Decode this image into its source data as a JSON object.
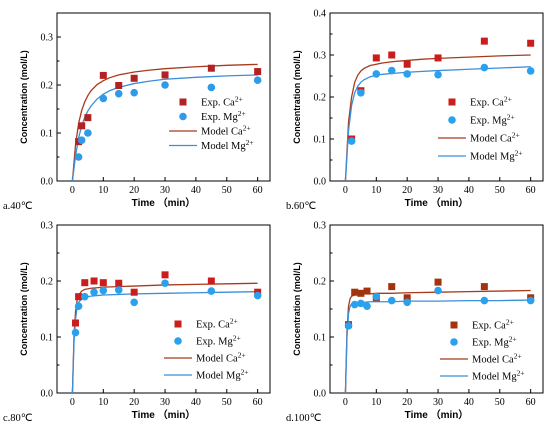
{
  "chart_data": [
    {
      "type": "scatter",
      "panel_label": "a.40℃",
      "xlabel": "Time （min）",
      "ylabel": "Concentration (mol/L)",
      "xlim": [
        -5,
        64
      ],
      "ylim": [
        0,
        0.35
      ],
      "xticks": [
        "0",
        "10",
        "20",
        "30",
        "40",
        "50",
        "60"
      ],
      "yticks": [
        "0.0",
        "0.1",
        "0.2",
        "0.3"
      ],
      "series": [
        {
          "name": "Exp. Ca2+",
          "kind": "points",
          "marker": "square",
          "color": "#b22222",
          "x": [
            2,
            3,
            5,
            10,
            15,
            20,
            30,
            45,
            60
          ],
          "y": [
            0.082,
            0.115,
            0.132,
            0.22,
            0.199,
            0.214,
            0.221,
            0.235,
            0.228
          ]
        },
        {
          "name": "Exp. Mg2+",
          "kind": "points",
          "marker": "circle",
          "color": "#2f9be8",
          "x": [
            2,
            3,
            5,
            10,
            15,
            20,
            30,
            45,
            60
          ],
          "y": [
            0.05,
            0.085,
            0.1,
            0.172,
            0.182,
            0.184,
            0.2,
            0.195,
            0.21
          ]
        },
        {
          "name": "Model Ca2+",
          "kind": "line",
          "color": "#a83a1c",
          "x": [
            0,
            1,
            2,
            3,
            4,
            5,
            6,
            8,
            10,
            12,
            15,
            20,
            25,
            30,
            40,
            50,
            60
          ],
          "y": [
            0,
            0.075,
            0.12,
            0.147,
            0.165,
            0.178,
            0.188,
            0.201,
            0.209,
            0.215,
            0.221,
            0.227,
            0.231,
            0.234,
            0.238,
            0.241,
            0.243
          ]
        },
        {
          "name": "Model Mg2+",
          "kind": "line",
          "color": "#3a8fd8",
          "x": [
            0,
            1,
            2,
            3,
            4,
            5,
            6,
            8,
            10,
            12,
            15,
            20,
            25,
            30,
            40,
            50,
            60
          ],
          "y": [
            0,
            0.052,
            0.09,
            0.115,
            0.133,
            0.146,
            0.156,
            0.171,
            0.181,
            0.188,
            0.195,
            0.203,
            0.208,
            0.212,
            0.216,
            0.219,
            0.221
          ]
        }
      ],
      "legend": "center-right",
      "legend_entries": [
        {
          "series": 0,
          "text": "Exp. Ca",
          "sup": "2+"
        },
        {
          "series": 1,
          "text": "Exp. Mg",
          "sup": "2+"
        },
        {
          "series": 2,
          "text": "Model Ca",
          "sup": "2+"
        },
        {
          "series": 3,
          "text": "Model Mg",
          "sup": "2+"
        }
      ]
    },
    {
      "type": "scatter",
      "panel_label": "b.60℃",
      "xlabel": "Time （min）",
      "ylabel": "Concentration (mol/L)",
      "xlim": [
        -5,
        64
      ],
      "ylim": [
        0,
        0.4
      ],
      "xticks": [
        "0",
        "10",
        "20",
        "30",
        "40",
        "50",
        "60"
      ],
      "yticks": [
        "0.0",
        "0.1",
        "0.2",
        "0.3",
        "0.4"
      ],
      "series": [
        {
          "name": "Exp. Ca2+",
          "kind": "points",
          "marker": "square",
          "color": "#cc1d1d",
          "x": [
            2,
            5,
            10,
            15,
            20,
            30,
            45,
            60
          ],
          "y": [
            0.1,
            0.215,
            0.293,
            0.3,
            0.278,
            0.293,
            0.333,
            0.328
          ]
        },
        {
          "name": "Exp. Mg2+",
          "kind": "points",
          "marker": "circle",
          "color": "#2aa1ee",
          "x": [
            2,
            5,
            10,
            15,
            20,
            30,
            45,
            60
          ],
          "y": [
            0.095,
            0.21,
            0.255,
            0.263,
            0.255,
            0.253,
            0.27,
            0.262
          ]
        },
        {
          "name": "Model Ca2+",
          "kind": "line",
          "color": "#a83a1c",
          "x": [
            0,
            1,
            2,
            3,
            4,
            5,
            6,
            8,
            10,
            12,
            15,
            20,
            25,
            30,
            40,
            50,
            60
          ],
          "y": [
            0,
            0.14,
            0.2,
            0.235,
            0.252,
            0.262,
            0.268,
            0.275,
            0.278,
            0.281,
            0.284,
            0.287,
            0.29,
            0.292,
            0.295,
            0.298,
            0.3
          ]
        },
        {
          "name": "Model Mg2+",
          "kind": "line",
          "color": "#3a8fd8",
          "x": [
            0,
            1,
            2,
            3,
            4,
            5,
            6,
            8,
            10,
            12,
            15,
            20,
            25,
            30,
            40,
            50,
            60
          ],
          "y": [
            0,
            0.12,
            0.18,
            0.21,
            0.226,
            0.235,
            0.241,
            0.248,
            0.252,
            0.254,
            0.256,
            0.259,
            0.261,
            0.263,
            0.266,
            0.269,
            0.272
          ]
        }
      ],
      "legend": "center-right",
      "legend_entries": [
        {
          "series": 0,
          "text": "Exp. Ca",
          "sup": "2+"
        },
        {
          "series": 1,
          "text": "Exp. Mg",
          "sup": "2+"
        },
        {
          "series": 2,
          "text": "Model Ca",
          "sup": "2+"
        },
        {
          "series": 3,
          "text": "Model Mg",
          "sup": "2+"
        }
      ]
    },
    {
      "type": "scatter",
      "panel_label": "c.80℃",
      "xlabel": "Time （min）",
      "ylabel": "Concentration (mol/L)",
      "xlim": [
        -5,
        64
      ],
      "ylim": [
        0,
        0.3
      ],
      "xticks": [
        "0",
        "10",
        "20",
        "30",
        "40",
        "50",
        "60"
      ],
      "yticks": [
        "0.0",
        "0.1",
        "0.2",
        "0.3"
      ],
      "series": [
        {
          "name": "Exp. Ca2+",
          "kind": "points",
          "marker": "square",
          "color": "#cc1d1d",
          "x": [
            1,
            2,
            4,
            7,
            10,
            15,
            20,
            30,
            45,
            60
          ],
          "y": [
            0.125,
            0.172,
            0.197,
            0.2,
            0.197,
            0.196,
            0.18,
            0.211,
            0.2,
            0.18
          ]
        },
        {
          "name": "Exp. Mg2+",
          "kind": "points",
          "marker": "circle",
          "color": "#2aa1ee",
          "x": [
            1,
            2,
            4,
            7,
            10,
            15,
            20,
            30,
            45,
            60
          ],
          "y": [
            0.108,
            0.155,
            0.172,
            0.18,
            0.183,
            0.184,
            0.162,
            0.196,
            0.182,
            0.174
          ]
        },
        {
          "name": "Model Ca2+",
          "kind": "line",
          "color": "#a83a1c",
          "x": [
            0,
            0.5,
            1,
            1.5,
            2,
            3,
            4,
            5,
            6,
            8,
            10,
            15,
            20,
            30,
            40,
            50,
            60
          ],
          "y": [
            0,
            0.1,
            0.145,
            0.165,
            0.175,
            0.182,
            0.185,
            0.186,
            0.187,
            0.188,
            0.189,
            0.19,
            0.191,
            0.193,
            0.194,
            0.195,
            0.196
          ]
        },
        {
          "name": "Model Mg2+",
          "kind": "line",
          "color": "#3a8fd8",
          "x": [
            0,
            0.5,
            1,
            1.5,
            2,
            3,
            4,
            5,
            6,
            8,
            10,
            15,
            20,
            30,
            40,
            50,
            60
          ],
          "y": [
            0,
            0.09,
            0.132,
            0.152,
            0.162,
            0.168,
            0.171,
            0.172,
            0.173,
            0.174,
            0.175,
            0.176,
            0.177,
            0.178,
            0.179,
            0.18,
            0.181
          ]
        }
      ],
      "legend": "bottom-right",
      "legend_entries": [
        {
          "series": 0,
          "text": "Exp. Ca",
          "sup": "2+"
        },
        {
          "series": 1,
          "text": "Exp. Mg",
          "sup": "2+"
        },
        {
          "series": 2,
          "text": "Model Ca",
          "sup": "2+"
        },
        {
          "series": 3,
          "text": "Model Mg",
          "sup": "2+"
        }
      ]
    },
    {
      "type": "scatter",
      "panel_label": "d.100℃",
      "xlabel": "Time （min）",
      "ylabel": "Concentration (mol/L)",
      "xlim": [
        -5,
        64
      ],
      "ylim": [
        0,
        0.3
      ],
      "xticks": [
        "0",
        "10",
        "20",
        "30",
        "40",
        "50",
        "60"
      ],
      "yticks": [
        "0.0",
        "0.1",
        "0.2",
        "0.3"
      ],
      "series": [
        {
          "name": "Exp. Ca2+",
          "kind": "points",
          "marker": "square",
          "color": "#a3330f",
          "x": [
            1,
            3,
            5,
            7,
            10,
            15,
            20,
            30,
            45,
            60
          ],
          "y": [
            0.122,
            0.18,
            0.178,
            0.182,
            0.17,
            0.19,
            0.17,
            0.198,
            0.19,
            0.17
          ]
        },
        {
          "name": "Exp. Mg2+",
          "kind": "points",
          "marker": "circle",
          "color": "#2aa1ee",
          "x": [
            1,
            3,
            5,
            7,
            10,
            15,
            20,
            30,
            45,
            60
          ],
          "y": [
            0.12,
            0.158,
            0.16,
            0.155,
            0.172,
            0.165,
            0.162,
            0.183,
            0.165,
            0.165
          ]
        },
        {
          "name": "Model Ca2+",
          "kind": "line",
          "color": "#a83a1c",
          "x": [
            0,
            0.5,
            1,
            1.5,
            2,
            3,
            4,
            5,
            6,
            8,
            10,
            15,
            20,
            30,
            40,
            50,
            60
          ],
          "y": [
            0,
            0.11,
            0.155,
            0.168,
            0.173,
            0.175,
            0.176,
            0.176,
            0.177,
            0.177,
            0.178,
            0.178,
            0.179,
            0.18,
            0.181,
            0.182,
            0.183
          ]
        },
        {
          "name": "Model Mg2+",
          "kind": "line",
          "color": "#3a8fd8",
          "x": [
            0,
            0.5,
            1,
            1.5,
            2,
            3,
            4,
            5,
            6,
            8,
            10,
            15,
            20,
            30,
            40,
            50,
            60
          ],
          "y": [
            0,
            0.1,
            0.142,
            0.155,
            0.159,
            0.161,
            0.162,
            0.162,
            0.162,
            0.163,
            0.163,
            0.163,
            0.164,
            0.164,
            0.165,
            0.165,
            0.166
          ]
        }
      ],
      "legend": "bottom-right",
      "legend_entries": [
        {
          "series": 0,
          "text": "Exp. Ca",
          "sup": "2+"
        },
        {
          "series": 1,
          "text": "Exp. Mg",
          "sup": "2+"
        },
        {
          "series": 2,
          "text": "Model Ca",
          "sup": "2+"
        },
        {
          "series": 3,
          "text": "Model Mg",
          "sup": "2+"
        }
      ]
    }
  ]
}
